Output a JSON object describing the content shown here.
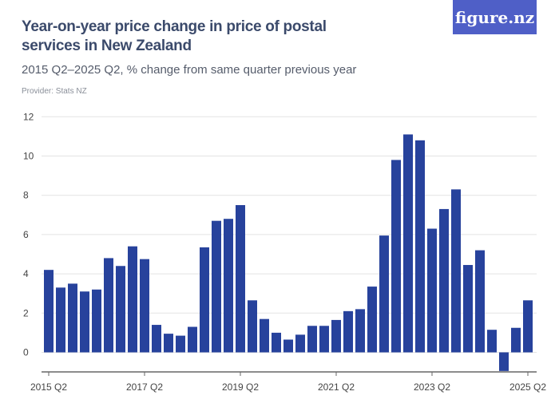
{
  "title": "Year-on-year price change in price of postal services in New Zealand",
  "subtitle": "2015 Q2–2025 Q2, % change from same quarter previous year",
  "provider": "Provider: Stats NZ",
  "logo": "figure.nz",
  "colors": {
    "bar": "#27429c",
    "logo_bg": "#4f5fc7",
    "grid": "#e3e3e3"
  },
  "chart_data": {
    "type": "bar",
    "title": "Year-on-year price change in price of postal services in New Zealand",
    "xlabel": "",
    "ylabel": "",
    "ylim": [
      -1,
      12
    ],
    "yticks": [
      0,
      2,
      4,
      6,
      8,
      10,
      12
    ],
    "xtick_labels": [
      "2015 Q2",
      "2017 Q2",
      "2019 Q2",
      "2021 Q2",
      "2023 Q2",
      "2025 Q2"
    ],
    "grid": true,
    "categories": [
      "2015 Q2",
      "2015 Q3",
      "2015 Q4",
      "2016 Q1",
      "2016 Q2",
      "2016 Q3",
      "2016 Q4",
      "2017 Q1",
      "2017 Q2",
      "2017 Q3",
      "2017 Q4",
      "2018 Q1",
      "2018 Q2",
      "2018 Q3",
      "2018 Q4",
      "2019 Q1",
      "2019 Q2",
      "2019 Q3",
      "2019 Q4",
      "2020 Q1",
      "2020 Q2",
      "2020 Q3",
      "2020 Q4",
      "2021 Q1",
      "2021 Q2",
      "2021 Q3",
      "2021 Q4",
      "2022 Q1",
      "2022 Q2",
      "2022 Q3",
      "2022 Q4",
      "2023 Q1",
      "2023 Q2",
      "2023 Q3",
      "2023 Q4",
      "2024 Q1",
      "2024 Q2",
      "2024 Q3",
      "2024 Q4",
      "2025 Q1",
      "2025 Q2"
    ],
    "values": [
      4.2,
      3.3,
      3.5,
      3.1,
      3.2,
      4.8,
      4.4,
      5.4,
      4.75,
      1.4,
      0.95,
      0.85,
      1.3,
      5.35,
      6.7,
      6.8,
      7.5,
      2.65,
      1.7,
      1.0,
      0.65,
      0.9,
      1.35,
      1.35,
      1.65,
      2.1,
      2.2,
      3.35,
      5.95,
      9.8,
      11.1,
      10.8,
      6.3,
      7.3,
      8.3,
      4.45,
      5.2,
      1.15,
      -0.95,
      1.25,
      2.65
    ]
  }
}
